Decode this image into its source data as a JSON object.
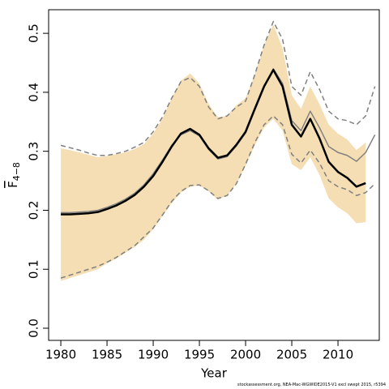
{
  "chart_data": {
    "type": "line",
    "x_label": "Year",
    "y_label": "F",
    "y_label_subscript": "4−8",
    "footnote": "stockassessment.org, NEA-Mac-WGWIDE2015-V1 excl swept 2015, r5394",
    "x": [
      1980,
      1981,
      1982,
      1983,
      1984,
      1985,
      1986,
      1987,
      1988,
      1989,
      1990,
      1991,
      1992,
      1993,
      1994,
      1995,
      1996,
      1997,
      1998,
      1999,
      2000,
      2001,
      2002,
      2003,
      2004,
      2005,
      2006,
      2007,
      2008,
      2009,
      2010,
      2011,
      2012,
      2013,
      2014
    ],
    "xlim": [
      1978.68,
      2014.47
    ],
    "xticks": [
      1980,
      1985,
      1990,
      1995,
      2000,
      2005,
      2010
    ],
    "ylim": [
      -0.0206,
      0.54
    ],
    "yticks": [
      {
        "value": 0,
        "label": "0.0"
      },
      0.1,
      0.2,
      0.3,
      0.4,
      0.5
    ],
    "band": {
      "color": "#f5deb3",
      "lower": [
        0.08,
        0.085,
        0.09,
        0.095,
        0.1,
        0.11,
        0.118,
        0.128,
        0.138,
        0.15,
        0.168,
        0.19,
        0.212,
        0.23,
        0.24,
        0.242,
        0.232,
        0.218,
        0.225,
        0.245,
        0.275,
        0.31,
        0.34,
        0.355,
        0.335,
        0.278,
        0.268,
        0.29,
        0.26,
        0.22,
        0.205,
        0.195,
        0.178,
        0.18,
        null
      ],
      "upper": [
        0.305,
        0.302,
        0.298,
        0.294,
        0.29,
        0.292,
        0.295,
        0.298,
        0.304,
        0.312,
        0.33,
        0.355,
        0.39,
        0.42,
        0.432,
        0.415,
        0.38,
        0.358,
        0.36,
        0.378,
        0.39,
        0.43,
        0.48,
        0.515,
        0.475,
        0.395,
        0.372,
        0.41,
        0.38,
        0.345,
        0.33,
        0.32,
        0.302,
        0.315,
        null
      ]
    },
    "series": [
      {
        "color": "#808080",
        "dash": true,
        "width": 1.5,
        "values": [
          0.31,
          0.306,
          0.302,
          0.297,
          0.293,
          0.293,
          0.296,
          0.3,
          0.307,
          0.315,
          0.333,
          0.358,
          0.39,
          0.418,
          0.425,
          0.41,
          0.375,
          0.355,
          0.36,
          0.375,
          0.385,
          0.43,
          0.48,
          0.52,
          0.49,
          0.41,
          0.395,
          0.435,
          0.405,
          0.368,
          0.355,
          0.352,
          0.345,
          0.36,
          0.41
        ]
      },
      {
        "color": "#808080",
        "dash": true,
        "width": 1.5,
        "values": [
          0.085,
          0.09,
          0.095,
          0.1,
          0.105,
          0.112,
          0.12,
          0.13,
          0.14,
          0.155,
          0.17,
          0.192,
          0.215,
          0.232,
          0.242,
          0.243,
          0.233,
          0.22,
          0.225,
          0.245,
          0.278,
          0.315,
          0.345,
          0.36,
          0.345,
          0.295,
          0.28,
          0.302,
          0.28,
          0.25,
          0.24,
          0.235,
          0.225,
          0.23,
          0.245
        ]
      },
      {
        "color": "#808080",
        "dash": false,
        "width": 1.5,
        "values": [
          0.196,
          0.196,
          0.197,
          0.198,
          0.2,
          0.205,
          0.211,
          0.219,
          0.229,
          0.243,
          0.262,
          0.285,
          0.31,
          0.328,
          0.335,
          0.326,
          0.303,
          0.287,
          0.291,
          0.309,
          0.331,
          0.37,
          0.408,
          0.44,
          0.415,
          0.352,
          0.335,
          0.368,
          0.34,
          0.308,
          0.298,
          0.293,
          0.283,
          0.298,
          0.328
        ]
      },
      {
        "color": "#000000",
        "dash": false,
        "width": 2.5,
        "values": [
          0.193,
          0.193,
          0.194,
          0.195,
          0.197,
          0.202,
          0.208,
          0.216,
          0.226,
          0.24,
          0.258,
          0.282,
          0.308,
          0.33,
          0.338,
          0.328,
          0.305,
          0.289,
          0.293,
          0.311,
          0.333,
          0.372,
          0.41,
          0.438,
          0.41,
          0.345,
          0.325,
          0.355,
          0.322,
          0.282,
          0.265,
          0.255,
          0.24,
          0.246,
          null
        ]
      }
    ]
  }
}
